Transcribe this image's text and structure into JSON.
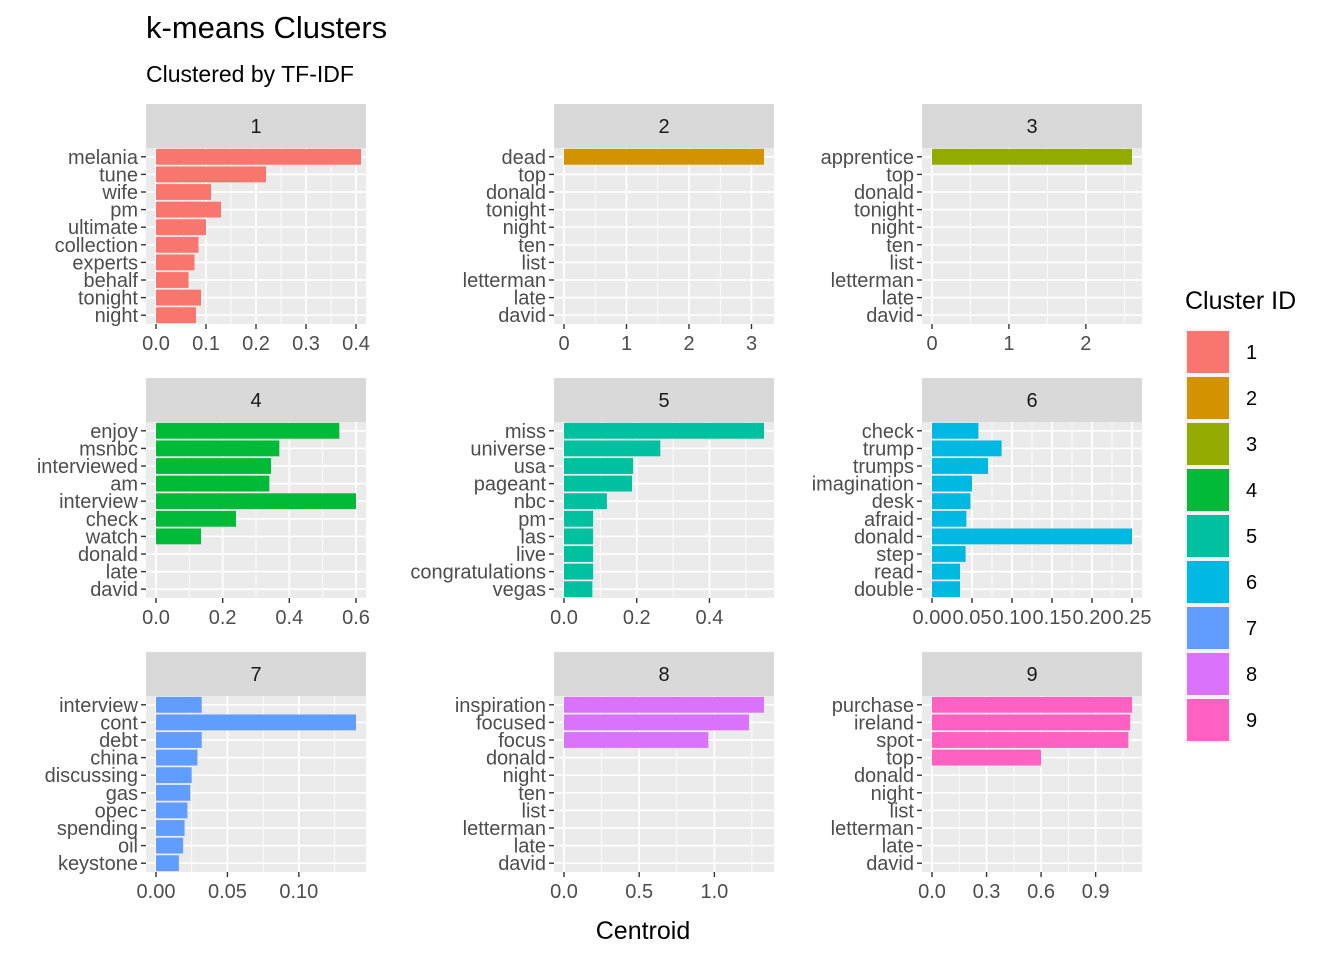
{
  "chart_data": {
    "type": "bar",
    "orientation": "horizontal",
    "title": "k-means Clusters",
    "subtitle": "Clustered by TF-IDF",
    "xlabel": "Centroid",
    "ylabel": "",
    "grid": true,
    "legend": {
      "title": "Cluster ID",
      "position": "right",
      "items": [
        {
          "label": "1",
          "color": "#F8766D"
        },
        {
          "label": "2",
          "color": "#D39200"
        },
        {
          "label": "3",
          "color": "#93AA00"
        },
        {
          "label": "4",
          "color": "#00BA38"
        },
        {
          "label": "5",
          "color": "#00C19F"
        },
        {
          "label": "6",
          "color": "#00B9E3"
        },
        {
          "label": "7",
          "color": "#619CFF"
        },
        {
          "label": "8",
          "color": "#DB72FB"
        },
        {
          "label": "9",
          "color": "#FF61C3"
        }
      ]
    },
    "panels": [
      {
        "id": "1",
        "color": "#F8766D",
        "xlim": [
          -0.02,
          0.42
        ],
        "ticks": [
          {
            "v": 0,
            "l": "0.0"
          },
          {
            "v": 0.1,
            "l": "0.1"
          },
          {
            "v": 0.2,
            "l": "0.2"
          },
          {
            "v": 0.3,
            "l": "0.3"
          },
          {
            "v": 0.4,
            "l": "0.4"
          }
        ],
        "categories": [
          "melania",
          "tune",
          "wife",
          "pm",
          "ultimate",
          "collection",
          "experts",
          "behalf",
          "tonight",
          "night"
        ],
        "values": [
          0.41,
          0.22,
          0.11,
          0.13,
          0.1,
          0.085,
          0.077,
          0.065,
          0.09,
          0.08
        ]
      },
      {
        "id": "2",
        "color": "#D39200",
        "xlim": [
          -0.16,
          3.36
        ],
        "ticks": [
          {
            "v": 0,
            "l": "0"
          },
          {
            "v": 1,
            "l": "1"
          },
          {
            "v": 2,
            "l": "2"
          },
          {
            "v": 3,
            "l": "3"
          }
        ],
        "categories": [
          "dead",
          "top",
          "donald",
          "tonight",
          "night",
          "ten",
          "list",
          "letterman",
          "late",
          "david"
        ],
        "values": [
          3.2,
          0,
          0,
          0,
          0,
          0,
          0,
          0,
          0,
          0
        ]
      },
      {
        "id": "3",
        "color": "#93AA00",
        "xlim": [
          -0.13,
          2.73
        ],
        "ticks": [
          {
            "v": 0,
            "l": "0"
          },
          {
            "v": 1,
            "l": "1"
          },
          {
            "v": 2,
            "l": "2"
          }
        ],
        "categories": [
          "apprentice",
          "top",
          "donald",
          "tonight",
          "night",
          "ten",
          "list",
          "letterman",
          "late",
          "david"
        ],
        "values": [
          2.6,
          0,
          0,
          0,
          0,
          0,
          0,
          0,
          0,
          0
        ]
      },
      {
        "id": "4",
        "color": "#00BA38",
        "xlim": [
          -0.03,
          0.63
        ],
        "ticks": [
          {
            "v": 0,
            "l": "0.0"
          },
          {
            "v": 0.2,
            "l": "0.2"
          },
          {
            "v": 0.4,
            "l": "0.4"
          },
          {
            "v": 0.6,
            "l": "0.6"
          }
        ],
        "categories": [
          "enjoy",
          "msnbc",
          "interviewed",
          "am",
          "interview",
          "check",
          "watch",
          "donald",
          "late",
          "david"
        ],
        "values": [
          0.55,
          0.37,
          0.345,
          0.34,
          0.6,
          0.24,
          0.135,
          0,
          0,
          0
        ]
      },
      {
        "id": "5",
        "color": "#00C19F",
        "xlim": [
          -0.0275,
          0.5775
        ],
        "ticks": [
          {
            "v": 0,
            "l": "0.0"
          },
          {
            "v": 0.2,
            "l": "0.2"
          },
          {
            "v": 0.4,
            "l": "0.4"
          }
        ],
        "categories": [
          "miss",
          "universe",
          "usa",
          "pageant",
          "nbc",
          "pm",
          "las",
          "live",
          "congratulations",
          "vegas"
        ],
        "values": [
          0.55,
          0.265,
          0.19,
          0.187,
          0.118,
          0.08,
          0.08,
          0.08,
          0.08,
          0.078
        ]
      },
      {
        "id": "6",
        "color": "#00B9E3",
        "xlim": [
          -0.0125,
          0.2625
        ],
        "ticks": [
          {
            "v": 0,
            "l": "0.00"
          },
          {
            "v": 0.05,
            "l": "0.05"
          },
          {
            "v": 0.1,
            "l": "0.10"
          },
          {
            "v": 0.15,
            "l": "0.15"
          },
          {
            "v": 0.2,
            "l": "0.20"
          },
          {
            "v": 0.25,
            "l": "0.25"
          }
        ],
        "categories": [
          "check",
          "trump",
          "trumps",
          "imagination",
          "desk",
          "afraid",
          "donald",
          "step",
          "read",
          "double"
        ],
        "values": [
          0.058,
          0.087,
          0.07,
          0.05,
          0.048,
          0.043,
          0.25,
          0.042,
          0.035,
          0.035
        ]
      },
      {
        "id": "7",
        "color": "#619CFF",
        "xlim": [
          -0.007,
          0.147
        ],
        "ticks": [
          {
            "v": 0,
            "l": "0.00"
          },
          {
            "v": 0.05,
            "l": "0.05"
          },
          {
            "v": 0.1,
            "l": "0.10"
          }
        ],
        "categories": [
          "interview",
          "cont",
          "debt",
          "china",
          "discussing",
          "gas",
          "opec",
          "spending",
          "oil",
          "keystone"
        ],
        "values": [
          0.032,
          0.14,
          0.032,
          0.029,
          0.025,
          0.024,
          0.022,
          0.02,
          0.019,
          0.016
        ]
      },
      {
        "id": "8",
        "color": "#DB72FB",
        "xlim": [
          -0.0665,
          1.3965
        ],
        "ticks": [
          {
            "v": 0,
            "l": "0.0"
          },
          {
            "v": 0.5,
            "l": "0.5"
          },
          {
            "v": 1,
            "l": "1.0"
          }
        ],
        "categories": [
          "inspiration",
          "focused",
          "focus",
          "donald",
          "night",
          "ten",
          "list",
          "letterman",
          "late",
          "david"
        ],
        "values": [
          1.33,
          1.23,
          0.96,
          0,
          0,
          0,
          0,
          0,
          0,
          0
        ]
      },
      {
        "id": "9",
        "color": "#FF61C3",
        "xlim": [
          -0.055,
          1.155
        ],
        "ticks": [
          {
            "v": 0,
            "l": "0.0"
          },
          {
            "v": 0.3,
            "l": "0.3"
          },
          {
            "v": 0.6,
            "l": "0.6"
          },
          {
            "v": 0.9,
            "l": "0.9"
          }
        ],
        "categories": [
          "purchase",
          "ireland",
          "spot",
          "top",
          "donald",
          "night",
          "list",
          "letterman",
          "late",
          "david"
        ],
        "values": [
          1.1,
          1.09,
          1.08,
          0.6,
          0,
          0,
          0,
          0,
          0,
          0
        ]
      }
    ]
  }
}
